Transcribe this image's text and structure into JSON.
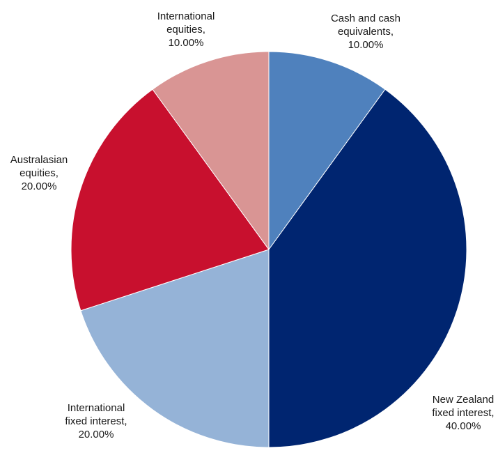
{
  "chart_data": {
    "type": "pie",
    "title": "",
    "slices": [
      {
        "name": "Cash and cash equivalents",
        "value": 10.0,
        "label_lines": [
          "Cash and cash",
          "equivalents,",
          "10.00%"
        ],
        "color": "#4f81bd"
      },
      {
        "name": "New Zealand fixed interest",
        "value": 40.0,
        "label_lines": [
          "New Zealand",
          "fixed interest,",
          "40.00%"
        ],
        "color": "#002570"
      },
      {
        "name": "International fixed interest",
        "value": 20.0,
        "label_lines": [
          "International",
          "fixed interest,",
          "20.00%"
        ],
        "color": "#95b3d7"
      },
      {
        "name": "Australasian equities",
        "value": 20.0,
        "label_lines": [
          "Australasian",
          "equities,",
          "20.00%"
        ],
        "color": "#c8102e"
      },
      {
        "name": "International equities",
        "value": 10.0,
        "label_lines": [
          "International",
          "equities,",
          "10.00%"
        ],
        "color": "#d99594"
      }
    ],
    "start_angle_deg": 0,
    "direction": "clockwise",
    "legend": "none",
    "data_labels": "outside"
  }
}
